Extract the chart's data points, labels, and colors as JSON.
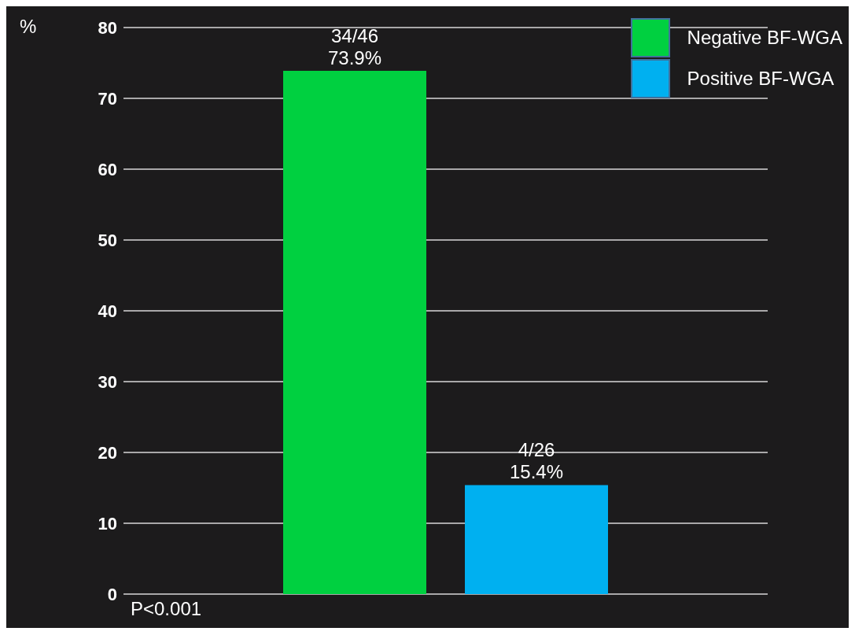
{
  "chart_data": {
    "type": "bar",
    "categories": [
      null
    ],
    "series": [
      {
        "name": "Negative BF-WGA",
        "color": "#00d040",
        "values": [
          73.9
        ],
        "value_labels": [
          "34/46\n73.9%"
        ]
      },
      {
        "name": "Positive BF-WGA",
        "color": "#00b0f0",
        "values": [
          15.4
        ],
        "value_labels": [
          "4/26\n15.4%"
        ]
      }
    ],
    "ylabel": "%",
    "ylim": [
      0,
      80
    ],
    "yticks": [
      0,
      10,
      20,
      30,
      40,
      50,
      60,
      70,
      80
    ],
    "grid": "y",
    "legend": "top right",
    "annotations": [
      "P<0.001"
    ]
  }
}
